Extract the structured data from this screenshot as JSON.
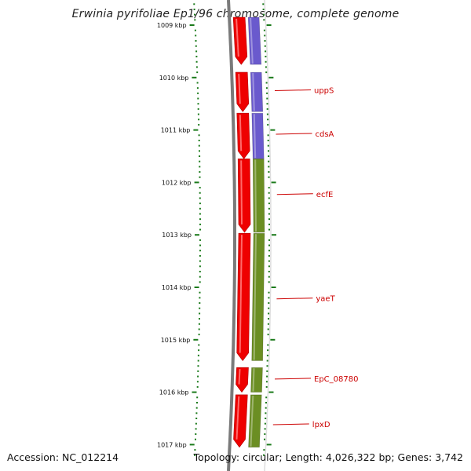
{
  "title": "Erwinia pyrifoliae Ep1/96 chromosome, complete genome",
  "footer": {
    "accession": "Accession: NC_012214",
    "summary": "Topology: circular; Length: 4,026,322 bp; Genes: 3,742"
  },
  "ruler": {
    "unit": "kbp",
    "ticks": [
      {
        "kbp": 1009,
        "label": "1009 kbp"
      },
      {
        "kbp": 1010,
        "label": "1010 kbp"
      },
      {
        "kbp": 1011,
        "label": "1011 kbp"
      },
      {
        "kbp": 1012,
        "label": "1012 kbp"
      },
      {
        "kbp": 1013,
        "label": "1013 kbp"
      },
      {
        "kbp": 1014,
        "label": "1014 kbp"
      },
      {
        "kbp": 1015,
        "label": "1015 kbp"
      },
      {
        "kbp": 1016,
        "label": "1016 kbp"
      },
      {
        "kbp": 1017,
        "label": "1017 kbp"
      }
    ]
  },
  "colors": {
    "gene_red": "#ee0000",
    "cog_blue": "#6a5acd",
    "cog_green": "#6b8e23",
    "ruler_green": "#1a7a1a",
    "backbone_gray": "#7a7a7a",
    "label_red": "#cc0000"
  },
  "genes": [
    {
      "name": "",
      "start": 1008.85,
      "end": 1009.75,
      "cog": "blue"
    },
    {
      "name": "uppS",
      "start": 1009.9,
      "end": 1010.65,
      "cog": "blue"
    },
    {
      "name": "cdsA",
      "start": 1010.68,
      "end": 1011.55,
      "cog": "blue"
    },
    {
      "name": "ecfE",
      "start": 1011.55,
      "end": 1012.95,
      "cog": "green"
    },
    {
      "name": "yaeT",
      "start": 1012.97,
      "end": 1015.4,
      "cog": "green"
    },
    {
      "name": "EpC_08780",
      "start": 1015.53,
      "end": 1016.0,
      "cog": "green"
    },
    {
      "name": "lpxD",
      "start": 1016.05,
      "end": 1017.05,
      "cog": "green"
    }
  ],
  "gene_labels": [
    {
      "name": "uppS",
      "kbp": 1010.25
    },
    {
      "name": "cdsA",
      "kbp": 1011.08
    },
    {
      "name": "ecfE",
      "kbp": 1012.23
    },
    {
      "name": "yaeT",
      "kbp": 1014.22
    },
    {
      "name": "EpC_08780",
      "kbp": 1015.75
    },
    {
      "name": "lpxD",
      "kbp": 1016.62
    }
  ]
}
